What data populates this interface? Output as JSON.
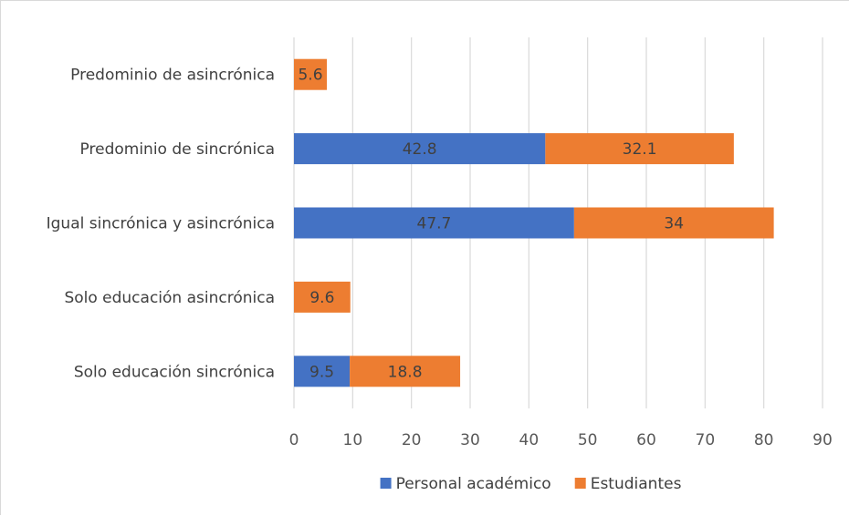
{
  "chart_data": {
    "type": "bar",
    "orientation": "horizontal",
    "stacked": true,
    "categories": [
      "Solo educación sincrónica",
      "Solo educación asincrónica",
      "Igual sincrónica y asincrónica",
      "Predominio de sincrónica",
      "Predominio de asincrónica"
    ],
    "series": [
      {
        "name": "Personal académico",
        "color": "#4472C4",
        "values": [
          9.5,
          null,
          47.7,
          42.8,
          null
        ]
      },
      {
        "name": "Estudiantes",
        "color": "#ED7D31",
        "values": [
          18.8,
          9.6,
          34,
          32.1,
          5.6
        ]
      }
    ],
    "xlim": [
      0,
      90
    ],
    "xticks": [
      0,
      10,
      20,
      30,
      40,
      50,
      60,
      70,
      80,
      90
    ],
    "title": "",
    "xlabel": "",
    "ylabel": "",
    "grid": "vertical",
    "legend_position": "bottom"
  }
}
